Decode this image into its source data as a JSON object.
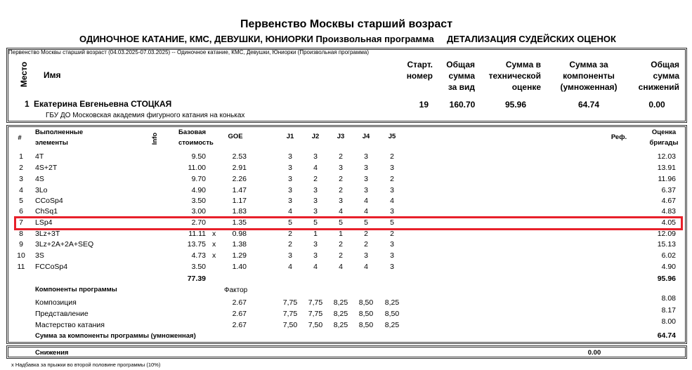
{
  "title": "Первенство Москвы старший возраст",
  "subtitle_left": "ОДИНОЧНОЕ КАТАНИЕ, КМС, ДЕВУШКИ, ЮНИОРКИ Произвольная программа",
  "subtitle_right": "ДЕТАЛИЗАЦИЯ СУДЕЙСКИХ ОЦЕНОК",
  "event_line": "Первенство Москвы старший возраст (04.03.2025-07.03.2025)  --  Одиночное катание, КМС, Девушки, Юниорки  (Произвольная программа)",
  "summary": {
    "headers": {
      "place": "Место",
      "name": "Имя",
      "start": [
        "Старт.",
        "номер"
      ],
      "total": [
        "Общая",
        "сумма",
        "за вид"
      ],
      "tes": [
        "Сумма в",
        "технической",
        "оценке"
      ],
      "pcs": [
        "Сумма за",
        "компоненты",
        "(умноженная)"
      ],
      "deductions": [
        "Общая",
        "сумма",
        "снижений"
      ]
    },
    "place": "1",
    "name": "Екатерина Евгеньевна СТОЦКАЯ",
    "club": "ГБУ ДО Московская академия фигурного катания на коньках",
    "start_number": "19",
    "total": "160.70",
    "tes": "95.96",
    "pcs": "64.74",
    "deductions": "0.00"
  },
  "elements_table": {
    "headers": {
      "num": "#",
      "element": [
        "Выполненные",
        "элементы"
      ],
      "info": "Info",
      "base": [
        "Базовая",
        "стоимость"
      ],
      "goe": "GOE",
      "judges": [
        "J1",
        "J2",
        "J3",
        "J4",
        "J5"
      ],
      "ref": "Реф.",
      "score": [
        "Оценка",
        "бригады"
      ]
    },
    "rows": [
      {
        "num": "1",
        "element": "4T",
        "base": "9.50",
        "bonus": "",
        "goe": "2.53",
        "j": [
          "3",
          "3",
          "2",
          "3",
          "2"
        ],
        "score": "12.03"
      },
      {
        "num": "2",
        "element": "4S+2T",
        "base": "11.00",
        "bonus": "",
        "goe": "2.91",
        "j": [
          "3",
          "4",
          "3",
          "3",
          "3"
        ],
        "score": "13.91"
      },
      {
        "num": "3",
        "element": "4S",
        "base": "9.70",
        "bonus": "",
        "goe": "2.26",
        "j": [
          "3",
          "2",
          "2",
          "3",
          "2"
        ],
        "score": "11.96"
      },
      {
        "num": "4",
        "element": "3Lo",
        "base": "4.90",
        "bonus": "",
        "goe": "1.47",
        "j": [
          "3",
          "3",
          "2",
          "3",
          "3"
        ],
        "score": "6.37"
      },
      {
        "num": "5",
        "element": "CCoSp4",
        "base": "3.50",
        "bonus": "",
        "goe": "1.17",
        "j": [
          "3",
          "3",
          "3",
          "4",
          "4"
        ],
        "score": "4.67"
      },
      {
        "num": "6",
        "element": "ChSq1",
        "base": "3.00",
        "bonus": "",
        "goe": "1.83",
        "j": [
          "4",
          "3",
          "4",
          "4",
          "3"
        ],
        "score": "4.83"
      },
      {
        "num": "7",
        "element": "LSp4",
        "base": "2.70",
        "bonus": "",
        "goe": "1.35",
        "j": [
          "5",
          "5",
          "5",
          "5",
          "5"
        ],
        "score": "4.05",
        "highlighted": true
      },
      {
        "num": "8",
        "element": "3Lz+3T",
        "base": "11.11",
        "bonus": "x",
        "goe": "0.98",
        "j": [
          "2",
          "1",
          "1",
          "2",
          "2"
        ],
        "score": "12.09"
      },
      {
        "num": "9",
        "element": "3Lz+2A+2A+SEQ",
        "base": "13.75",
        "bonus": "x",
        "goe": "1.38",
        "j": [
          "2",
          "3",
          "2",
          "2",
          "3"
        ],
        "score": "15.13"
      },
      {
        "num": "10",
        "element": "3S",
        "base": "4.73",
        "bonus": "x",
        "goe": "1.29",
        "j": [
          "3",
          "3",
          "2",
          "3",
          "3"
        ],
        "score": "6.02"
      },
      {
        "num": "11",
        "element": "FCCoSp4",
        "base": "3.50",
        "bonus": "",
        "goe": "1.40",
        "j": [
          "4",
          "4",
          "4",
          "4",
          "3"
        ],
        "score": "4.90"
      }
    ],
    "base_total": "77.39",
    "score_total": "95.96"
  },
  "components": {
    "header": "Компоненты программы",
    "factor_label": "Фактор",
    "rows": [
      {
        "name": "Композиция",
        "factor": "2.67",
        "j": [
          "7,75",
          "7,75",
          "8,25",
          "8,50",
          "8,25"
        ],
        "score": "8.08"
      },
      {
        "name": "Представление",
        "factor": "2.67",
        "j": [
          "7,75",
          "7,75",
          "8,25",
          "8,50",
          "8,50"
        ],
        "score": "8.17"
      },
      {
        "name": "Мастерство катания",
        "factor": "2.67",
        "j": [
          "7,50",
          "7,50",
          "8,25",
          "8,50",
          "8,25"
        ],
        "score": "8.00"
      }
    ],
    "sum_label": "Сумма за компоненты программы (умноженная)",
    "sum_value": "64.74"
  },
  "deductions": {
    "label": "Снижения",
    "value": "0.00"
  },
  "footnote": "x Надбавка за прыжки во второй половине программы (10%)",
  "colors": {
    "highlight": "#e8202a",
    "border": "#333333"
  }
}
